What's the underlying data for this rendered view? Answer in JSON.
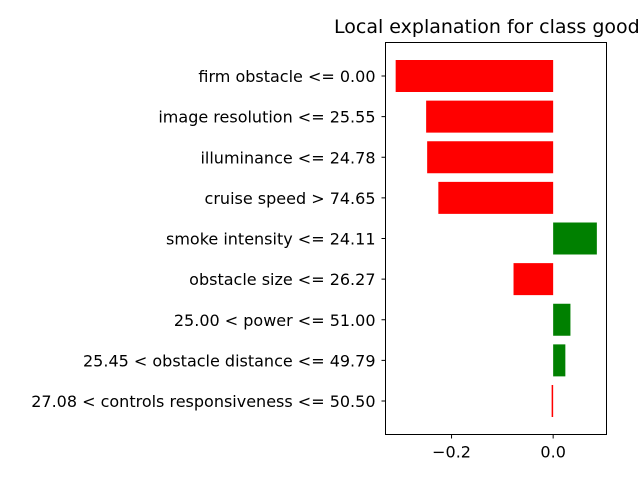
{
  "chart_data": {
    "type": "bar",
    "orientation": "horizontal",
    "title": "Local explanation for class good",
    "xlabel": "",
    "ylabel": "",
    "categories": [
      "firm obstacle <= 0.00",
      "image resolution <= 25.55",
      "illuminance <= 24.78",
      "cruise speed > 74.65",
      "smoke intensity <= 24.11",
      "obstacle size <= 26.27",
      "25.00 < power <= 51.00",
      "25.45 < obstacle distance <= 49.79",
      "27.08 < controls responsiveness <= 50.50"
    ],
    "values": [
      -0.31,
      -0.25,
      -0.248,
      -0.226,
      0.086,
      -0.078,
      0.034,
      0.024,
      -0.003
    ],
    "xlim": [
      -0.33,
      0.105
    ],
    "xticks": [
      -0.2,
      0.0
    ],
    "xtick_labels": [
      "−0.2",
      "0.0"
    ],
    "grid": false,
    "legend": "none",
    "colors": {
      "positive": "#008000",
      "negative": "#ff0000"
    }
  }
}
